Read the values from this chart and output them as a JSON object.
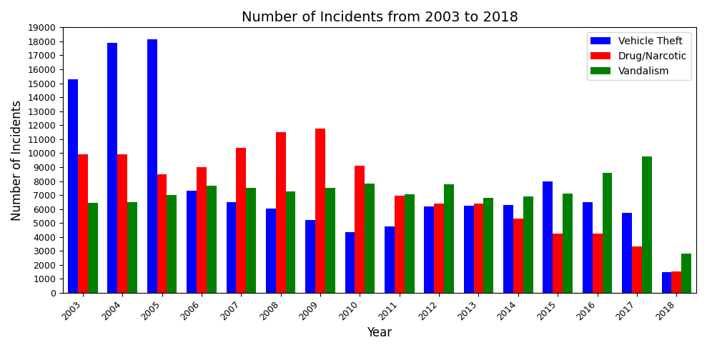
{
  "title": "Number of Incidents from 2003 to 2018",
  "xlabel": "Year",
  "ylabel": "Number of Incidents",
  "years": [
    2003,
    2004,
    2005,
    2006,
    2007,
    2008,
    2009,
    2010,
    2011,
    2012,
    2013,
    2014,
    2015,
    2016,
    2017,
    2018
  ],
  "vehicle_theft": [
    15300,
    17900,
    18150,
    7300,
    6500,
    6050,
    5200,
    4350,
    4750,
    6200,
    6250,
    6300,
    8000,
    6500,
    5750,
    1500
  ],
  "drug_narcotic": [
    9900,
    9900,
    8500,
    9000,
    10400,
    11500,
    11750,
    9100,
    6950,
    6400,
    6400,
    5300,
    4250,
    4250,
    3300,
    1550
  ],
  "vandalism": [
    6450,
    6500,
    7000,
    7650,
    7500,
    7250,
    7500,
    7800,
    7050,
    7750,
    6800,
    6900,
    7100,
    8600,
    9750,
    2800
  ],
  "colors": {
    "vehicle_theft": "blue",
    "drug_narcotic": "red",
    "vandalism": "green"
  },
  "ylim": [
    0,
    19000
  ],
  "yticks": [
    0,
    1000,
    2000,
    3000,
    4000,
    5000,
    6000,
    7000,
    8000,
    9000,
    10000,
    11000,
    12000,
    13000,
    14000,
    15000,
    16000,
    17000,
    18000,
    19000
  ],
  "legend_labels": [
    "Vehicle Theft",
    "Drug/Narcotic",
    "Vandalism"
  ],
  "bar_width": 0.25
}
